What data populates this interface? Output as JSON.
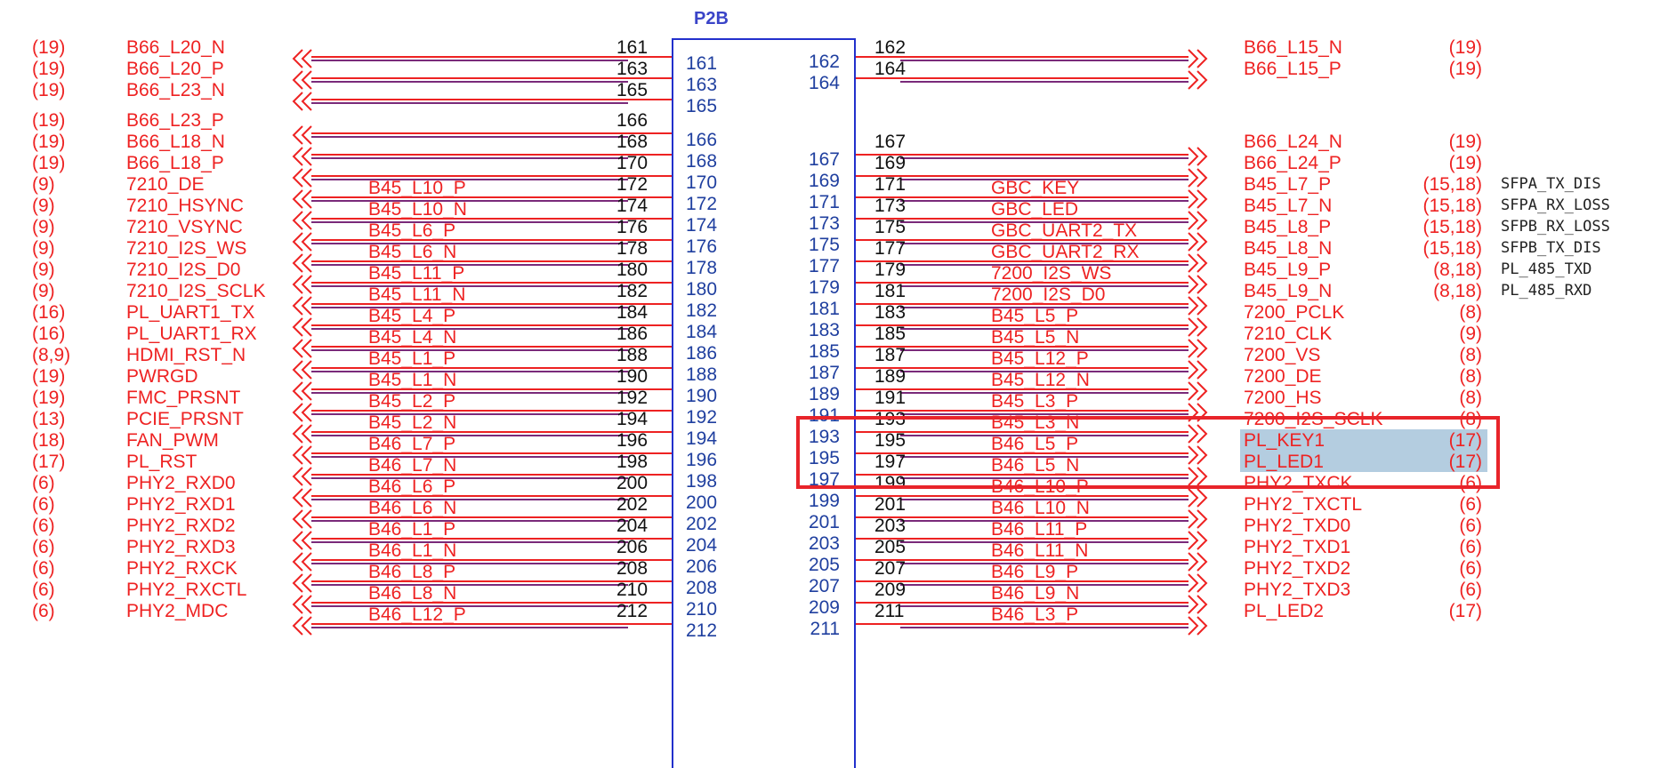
{
  "title": "P2B",
  "rows_y": [
    60,
    70,
    84,
    94,
    108,
    118,
    132,
    142,
    156,
    166,
    180,
    190,
    204,
    214,
    228,
    238,
    252,
    262,
    276,
    286,
    300,
    310,
    324,
    334,
    348,
    358,
    372,
    382,
    396,
    406,
    420,
    430,
    444,
    454,
    468,
    478,
    492,
    502,
    516,
    526,
    540,
    550,
    564,
    574,
    588,
    598,
    612,
    622,
    636,
    646,
    660,
    670,
    684,
    694,
    708,
    718,
    732,
    742,
    756,
    766,
    780,
    790,
    804,
    814,
    828,
    838,
    852,
    862
  ],
  "left": [
    {
      "ref": "(19)",
      "net": "B66_L20_N",
      "mid": "",
      "pin": "161",
      "ipin": "161",
      "r": 0
    },
    {
      "ref": "(19)",
      "net": "B66_L20_P",
      "mid": "",
      "pin": "163",
      "ipin": "163",
      "r": 2
    },
    {
      "ref": "(19)",
      "net": "B66_L23_N",
      "mid": "",
      "pin": "165",
      "ipin": "165",
      "r": 4
    },
    {
      "ref": "(19)",
      "net": "B66_L23_P",
      "mid": "",
      "pin": "166",
      "ipin": "166",
      "r": 7
    },
    {
      "ref": "(19)",
      "net": "B66_L18_N",
      "mid": "",
      "pin": "168",
      "ipin": "168",
      "r": 9
    },
    {
      "ref": "(19)",
      "net": "B66_L18_P",
      "mid": "",
      "pin": "170",
      "ipin": "170",
      "r": 11
    },
    {
      "ref": "(9)",
      "net": "7210_DE",
      "mid": "B45_L10_P",
      "pin": "172",
      "ipin": "172",
      "r": 13
    },
    {
      "ref": "(9)",
      "net": "7210_HSYNC",
      "mid": "B45_L10_N",
      "pin": "174",
      "ipin": "174",
      "r": 15
    },
    {
      "ref": "(9)",
      "net": "7210_VSYNC",
      "mid": "B45_L6_P",
      "pin": "176",
      "ipin": "176",
      "r": 17
    },
    {
      "ref": "(9)",
      "net": "7210_I2S_WS",
      "mid": "B45_L6_N",
      "pin": "178",
      "ipin": "178",
      "r": 19
    },
    {
      "ref": "(9)",
      "net": "7210_I2S_D0",
      "mid": "B45_L11_P",
      "pin": "180",
      "ipin": "180",
      "r": 21
    },
    {
      "ref": "(9)",
      "net": "7210_I2S_SCLK",
      "mid": "B45_L11_N",
      "pin": "182",
      "ipin": "182",
      "r": 23
    },
    {
      "ref": "(16)",
      "net": "PL_UART1_TX",
      "mid": "B45_L4_P",
      "pin": "184",
      "ipin": "184",
      "r": 25
    },
    {
      "ref": "(16)",
      "net": "PL_UART1_RX",
      "mid": "B45_L4_N",
      "pin": "186",
      "ipin": "186",
      "r": 27
    },
    {
      "ref": "(8,9)",
      "net": "HDMI_RST_N",
      "mid": "B45_L1_P",
      "pin": "188",
      "ipin": "188",
      "r": 29
    },
    {
      "ref": "(19)",
      "net": "PWRGD",
      "mid": "B45_L1_N",
      "pin": "190",
      "ipin": "190",
      "r": 31
    },
    {
      "ref": "(19)",
      "net": "FMC_PRSNT",
      "mid": "B45_L2_P",
      "pin": "192",
      "ipin": "192",
      "r": 33
    },
    {
      "ref": "(13)",
      "net": "PCIE_PRSNT",
      "mid": "B45_L2_N",
      "pin": "194",
      "ipin": "194",
      "r": 35
    },
    {
      "ref": "(18)",
      "net": "FAN_PWM",
      "mid": "B46_L7_P",
      "pin": "196",
      "ipin": "196",
      "r": 37
    },
    {
      "ref": "(17)",
      "net": "PL_RST",
      "mid": "B46_L7_N",
      "pin": "198",
      "ipin": "198",
      "r": 39
    },
    {
      "ref": "(6)",
      "net": "PHY2_RXD0",
      "mid": "B46_L6_P",
      "pin": "200",
      "ipin": "200",
      "r": 41
    },
    {
      "ref": "(6)",
      "net": "PHY2_RXD1",
      "mid": "B46_L6_N",
      "pin": "202",
      "ipin": "202",
      "r": 43
    },
    {
      "ref": "(6)",
      "net": "PHY2_RXD2",
      "mid": "B46_L1_P",
      "pin": "204",
      "ipin": "204",
      "r": 45
    },
    {
      "ref": "(6)",
      "net": "PHY2_RXD3",
      "mid": "B46_L1_N",
      "pin": "206",
      "ipin": "206",
      "r": 47
    },
    {
      "ref": "(6)",
      "net": "PHY2_RXCK",
      "mid": "B46_L8_P",
      "pin": "208",
      "ipin": "208",
      "r": 49
    },
    {
      "ref": "(6)",
      "net": "PHY2_RXCTL",
      "mid": "B46_L8_N",
      "pin": "210",
      "ipin": "210",
      "r": 51
    },
    {
      "ref": "(6)",
      "net": "PHY2_MDC",
      "mid": "B46_L12_P",
      "pin": "212",
      "ipin": "212",
      "r": 53
    }
  ],
  "right": [
    {
      "ipin": "162",
      "pin": "162",
      "mid": "",
      "net": "B66_L15_N",
      "ref": "(19)",
      "note": "",
      "r": 0
    },
    {
      "ipin": "164",
      "pin": "164",
      "mid": "",
      "net": "B66_L15_P",
      "ref": "(19)",
      "note": "",
      "r": 2
    },
    {
      "ipin": "167",
      "pin": "167",
      "mid": "",
      "net": "B66_L24_N",
      "ref": "(19)",
      "note": "",
      "r": 9
    },
    {
      "ipin": "169",
      "pin": "169",
      "mid": "",
      "net": "B66_L24_P",
      "ref": "(19)",
      "note": "",
      "r": 11
    },
    {
      "ipin": "171",
      "pin": "171",
      "mid": "GBC_KEY",
      "net": "B45_L7_P",
      "ref": "(15,18)",
      "note": "SFPA_TX_DIS",
      "r": 13
    },
    {
      "ipin": "173",
      "pin": "173",
      "mid": "GBC_LED",
      "net": "B45_L7_N",
      "ref": "(15,18)",
      "note": "SFPA_RX_LOSS",
      "r": 15
    },
    {
      "ipin": "175",
      "pin": "175",
      "mid": "GBC_UART2_TX",
      "net": "B45_L8_P",
      "ref": "(15,18)",
      "note": "SFPB_RX_LOSS",
      "r": 17
    },
    {
      "ipin": "177",
      "pin": "177",
      "mid": "GBC_UART2_RX",
      "net": "B45_L8_N",
      "ref": "(15,18)",
      "note": "SFPB_TX_DIS",
      "r": 19
    },
    {
      "ipin": "179",
      "pin": "179",
      "mid": "7200_I2S_WS",
      "net": "B45_L9_P",
      "ref": "(8,18)",
      "note": "PL_485_TXD",
      "r": 21
    },
    {
      "ipin": "181",
      "pin": "181",
      "mid": "7200_I2S_D0",
      "net": "B45_L9_N",
      "ref": "(8,18)",
      "note": "PL_485_RXD",
      "r": 23
    },
    {
      "ipin": "183",
      "pin": "183",
      "mid": "B45_L5_P",
      "net": "7200_PCLK",
      "ref": "(8)",
      "note": "",
      "r": 25
    },
    {
      "ipin": "185",
      "pin": "185",
      "mid": "B45_L5_N",
      "net": "7210_CLK",
      "ref": "(9)",
      "note": "",
      "r": 27
    },
    {
      "ipin": "187",
      "pin": "187",
      "mid": "B45_L12_P",
      "net": "7200_VS",
      "ref": "(8)",
      "note": "",
      "r": 29
    },
    {
      "ipin": "189",
      "pin": "189",
      "mid": "B45_L12_N",
      "net": "7200_DE",
      "ref": "(8)",
      "note": "",
      "r": 31
    },
    {
      "ipin": "191",
      "pin": "191",
      "mid": "B45_L3_P",
      "net": "7200_HS",
      "ref": "(8)",
      "note": "",
      "r": 33
    },
    {
      "ipin": "193",
      "pin": "193",
      "mid": "B45_L3_N",
      "net": "7200_I2S_SCLK",
      "ref": "(8)",
      "note": "",
      "r": 35
    },
    {
      "ipin": "195",
      "pin": "195",
      "mid": "B46_L5_P",
      "net": "PL_KEY1",
      "ref": "(17)",
      "note": "",
      "r": 37
    },
    {
      "ipin": "197",
      "pin": "197",
      "mid": "B46_L5_N",
      "net": "PL_LED1",
      "ref": "(17)",
      "note": "",
      "r": 39
    },
    {
      "ipin": "199",
      "pin": "199",
      "mid": "B46_L10_P",
      "net": "PHY2_TXCK",
      "ref": "(6)",
      "note": "",
      "r": 41
    },
    {
      "ipin": "201",
      "pin": "201",
      "mid": "B46_L10_N",
      "net": "PHY2_TXCTL",
      "ref": "(6)",
      "note": "",
      "r": 43
    },
    {
      "ipin": "203",
      "pin": "203",
      "mid": "B46_L11_P",
      "net": "PHY2_TXD0",
      "ref": "(6)",
      "note": "",
      "r": 45
    },
    {
      "ipin": "205",
      "pin": "205",
      "mid": "B46_L11_N",
      "net": "PHY2_TXD1",
      "ref": "(6)",
      "note": "",
      "r": 47
    },
    {
      "ipin": "207",
      "pin": "207",
      "mid": "B46_L9_P",
      "net": "PHY2_TXD2",
      "ref": "(6)",
      "note": "",
      "r": 49
    },
    {
      "ipin": "209",
      "pin": "209",
      "mid": "B46_L9_N",
      "net": "PHY2_TXD3",
      "ref": "(6)",
      "note": "",
      "r": 51
    },
    {
      "ipin": "211",
      "pin": "211",
      "mid": "B46_L3_P",
      "net": "PL_LED2",
      "ref": "(17)",
      "note": "",
      "r": 53
    }
  ],
  "highlight": {
    "nets": [
      "PL_KEY1",
      "PL_LED1"
    ],
    "box_color": "#e8242a",
    "fill_color": "#b4cde0"
  },
  "colors": {
    "net": "#ee2222",
    "connector": "#2230cc",
    "pin": "#111111"
  }
}
